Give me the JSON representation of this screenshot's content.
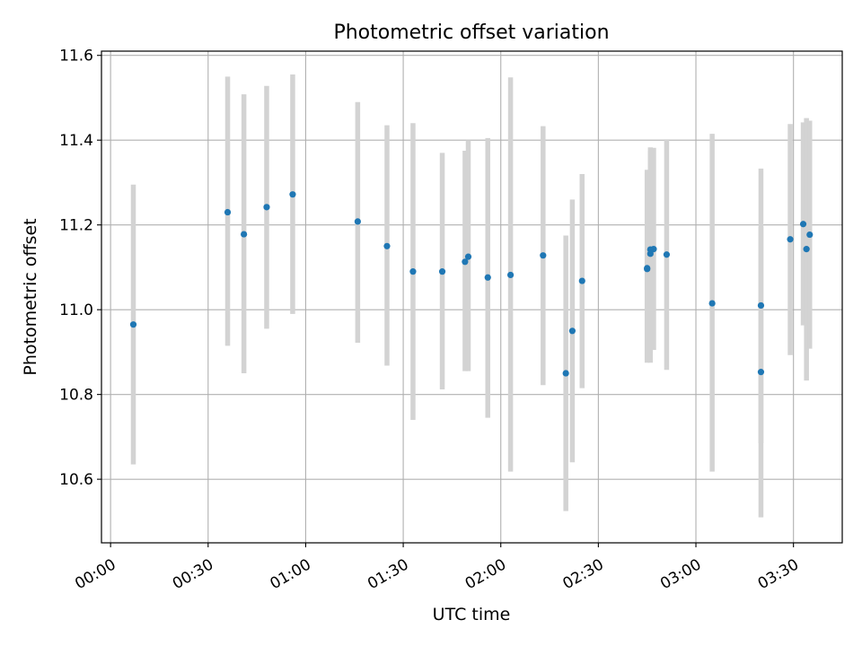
{
  "chart_data": {
    "type": "scatter",
    "title": "Photometric offset variation",
    "xlabel": "UTC time",
    "ylabel": "Photometric offset",
    "x_unit": "minutes",
    "xlim": [
      -2.8,
      225
    ],
    "ylim": [
      10.45,
      11.61
    ],
    "x_ticks": [
      0,
      30,
      60,
      90,
      120,
      150,
      180,
      210
    ],
    "x_tick_labels": [
      "00:00",
      "00:30",
      "01:00",
      "01:30",
      "02:00",
      "02:30",
      "03:00",
      "03:30"
    ],
    "y_ticks": [
      10.6,
      10.8,
      11.0,
      11.2,
      11.4,
      11.6
    ],
    "y_tick_labels": [
      "10.6",
      "10.8",
      "11.0",
      "11.2",
      "11.4",
      "11.6"
    ],
    "grid": true,
    "colors": {
      "marker": "#1f77b4",
      "errorbar": "#d3d3d3",
      "grid": "#b0b0b0",
      "axes": "#000000"
    },
    "points": [
      {
        "x": "00:07",
        "y": 10.965,
        "ylo": 10.635,
        "yhi": 11.295
      },
      {
        "x": "00:36",
        "y": 11.23,
        "ylo": 10.915,
        "yhi": 11.55
      },
      {
        "x": "00:41",
        "y": 11.178,
        "ylo": 10.85,
        "yhi": 11.508
      },
      {
        "x": "00:48",
        "y": 11.242,
        "ylo": 10.955,
        "yhi": 11.528
      },
      {
        "x": "00:56",
        "y": 11.272,
        "ylo": 10.99,
        "yhi": 11.555
      },
      {
        "x": "01:16",
        "y": 11.208,
        "ylo": 10.922,
        "yhi": 11.49
      },
      {
        "x": "01:25",
        "y": 11.15,
        "ylo": 10.868,
        "yhi": 11.435
      },
      {
        "x": "01:33",
        "y": 11.09,
        "ylo": 10.74,
        "yhi": 11.44
      },
      {
        "x": "01:42",
        "y": 11.09,
        "ylo": 10.812,
        "yhi": 11.37
      },
      {
        "x": "01:49",
        "y": 11.113,
        "ylo": 10.855,
        "yhi": 11.375
      },
      {
        "x": "01:50",
        "y": 11.125,
        "ylo": 10.855,
        "yhi": 11.4
      },
      {
        "x": "01:56",
        "y": 11.076,
        "ylo": 10.745,
        "yhi": 11.405
      },
      {
        "x": "02:03",
        "y": 11.082,
        "ylo": 10.618,
        "yhi": 11.548
      },
      {
        "x": "02:13",
        "y": 11.128,
        "ylo": 10.822,
        "yhi": 11.433
      },
      {
        "x": "02:20",
        "y": 10.85,
        "ylo": 10.525,
        "yhi": 11.175
      },
      {
        "x": "02:22",
        "y": 10.95,
        "ylo": 10.64,
        "yhi": 11.26
      },
      {
        "x": "02:25",
        "y": 11.068,
        "ylo": 10.815,
        "yhi": 11.32
      },
      {
        "x": "02:45",
        "y": 11.098,
        "ylo": 10.882,
        "yhi": 11.322
      },
      {
        "x": "02:45",
        "y": 11.096,
        "ylo": 10.875,
        "yhi": 11.33
      },
      {
        "x": "02:46",
        "y": 11.132,
        "ylo": 10.875,
        "yhi": 11.375
      },
      {
        "x": "02:46",
        "y": 11.142,
        "ylo": 10.9,
        "yhi": 11.383
      },
      {
        "x": "02:47",
        "y": 11.143,
        "ylo": 10.905,
        "yhi": 11.382
      },
      {
        "x": "02:51",
        "y": 11.13,
        "ylo": 10.858,
        "yhi": 11.402
      },
      {
        "x": "03:05",
        "y": 11.015,
        "ylo": 10.618,
        "yhi": 11.415
      },
      {
        "x": "03:20",
        "y": 10.853,
        "ylo": 10.51,
        "yhi": 11.195
      },
      {
        "x": "03:20",
        "y": 11.01,
        "ylo": 10.685,
        "yhi": 11.333
      },
      {
        "x": "03:29",
        "y": 11.166,
        "ylo": 10.893,
        "yhi": 11.438
      },
      {
        "x": "03:33",
        "y": 11.202,
        "ylo": 10.963,
        "yhi": 11.442
      },
      {
        "x": "03:34",
        "y": 11.143,
        "ylo": 10.833,
        "yhi": 11.452
      },
      {
        "x": "03:35",
        "y": 11.177,
        "ylo": 10.908,
        "yhi": 11.446
      }
    ]
  }
}
